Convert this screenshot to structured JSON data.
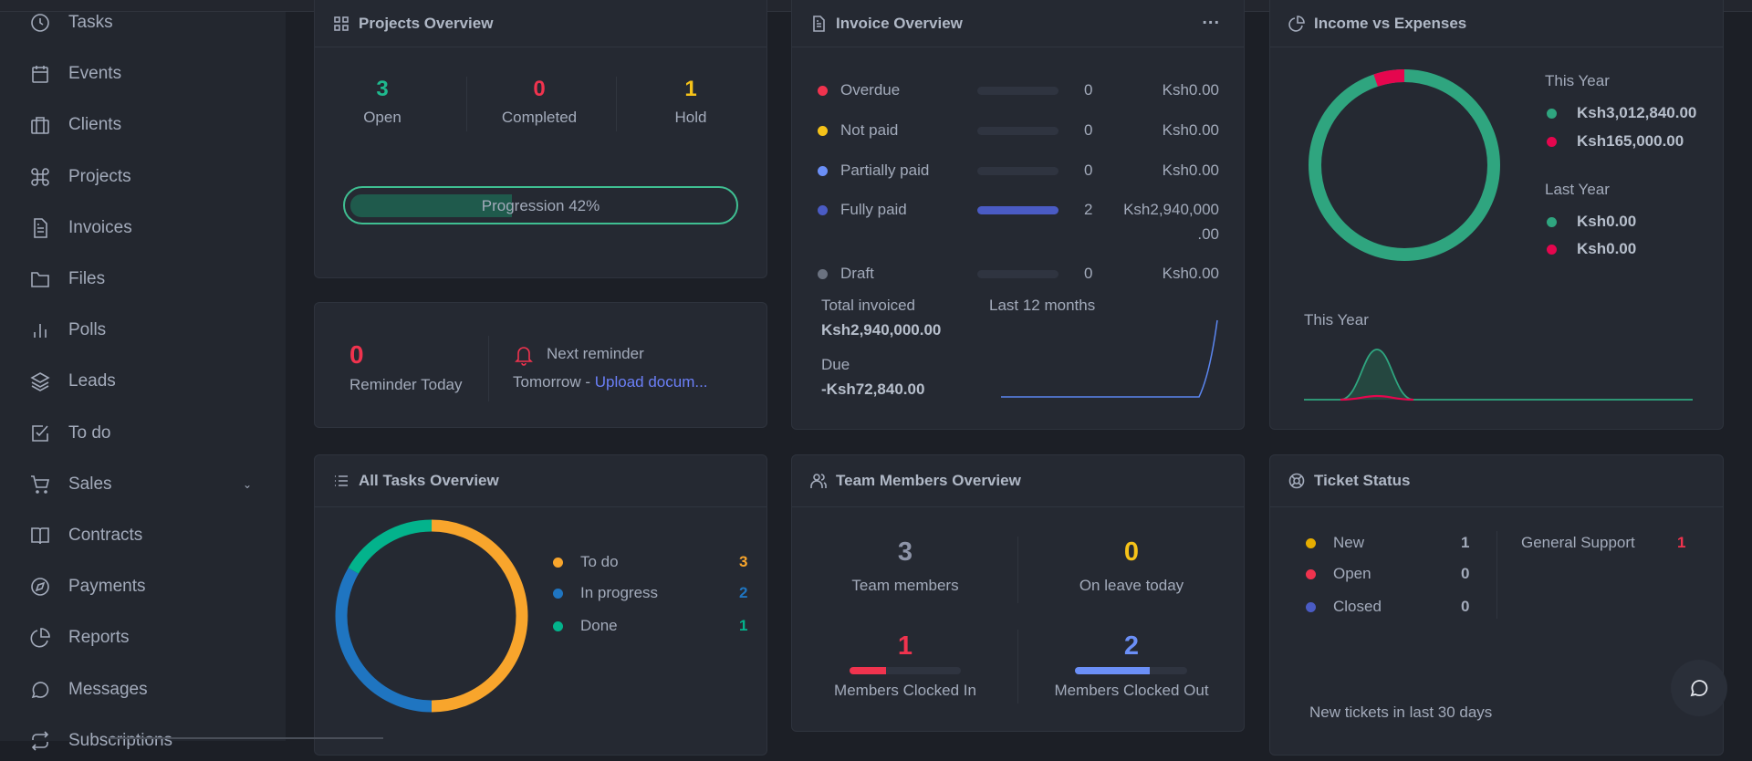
{
  "sidebar": {
    "items": [
      {
        "label": "Tasks",
        "icon": "clock-icon"
      },
      {
        "label": "Events",
        "icon": "calendar-icon"
      },
      {
        "label": "Clients",
        "icon": "briefcase-icon"
      },
      {
        "label": "Projects",
        "icon": "command-icon"
      },
      {
        "label": "Invoices",
        "icon": "file-text-icon"
      },
      {
        "label": "Files",
        "icon": "folder-icon"
      },
      {
        "label": "Polls",
        "icon": "bar-chart-icon"
      },
      {
        "label": "Leads",
        "icon": "layers-icon"
      },
      {
        "label": "To do",
        "icon": "check-square-icon"
      },
      {
        "label": "Sales",
        "icon": "shopping-cart-icon"
      },
      {
        "label": "Contracts",
        "icon": "book-open-icon"
      },
      {
        "label": "Payments",
        "icon": "compass-icon"
      },
      {
        "label": "Reports",
        "icon": "pie-chart-icon"
      },
      {
        "label": "Messages",
        "icon": "message-circle-icon"
      },
      {
        "label": "Subscriptions",
        "icon": "repeat-icon"
      }
    ]
  },
  "projects": {
    "title": "Projects Overview",
    "stats": [
      {
        "value": "3",
        "label": "Open",
        "color": "#1fb98e"
      },
      {
        "value": "0",
        "label": "Completed",
        "color": "#f0334e"
      },
      {
        "value": "1",
        "label": "Hold",
        "color": "#f5c219"
      }
    ],
    "progress_label": "Progression 42%",
    "progress": 42
  },
  "reminder": {
    "count": "0",
    "count_label": "Reminder Today",
    "next_label": "Next reminder",
    "when": "Tomorrow - ",
    "link": "Upload docum..."
  },
  "invoice": {
    "title": "Invoice Overview",
    "more": "...",
    "rows": [
      {
        "label": "Overdue",
        "count": "0",
        "amount": "Ksh0.00",
        "color": "#f0334e",
        "fill": 0
      },
      {
        "label": "Not paid",
        "count": "0",
        "amount": "Ksh0.00",
        "color": "#f5c219",
        "fill": 0
      },
      {
        "label": "Partially paid",
        "count": "0",
        "amount": "Ksh0.00",
        "color": "#6b8ff7",
        "fill": 0
      },
      {
        "label": "Fully paid",
        "count": "2",
        "amount": "Ksh2,940,000",
        "amount2": ".00",
        "color": "#4a5bc4",
        "fill": 100
      },
      {
        "label": "Draft",
        "count": "0",
        "amount": "Ksh0.00",
        "color": "#6b7280",
        "fill": 0
      }
    ],
    "total_label": "Total invoiced",
    "total_value": "Ksh2,940,000.00",
    "due_label": "Due",
    "due_value": "-Ksh72,840.00",
    "period": "Last 12 months"
  },
  "income": {
    "title": "Income vs Expenses",
    "this_year": "This Year",
    "last_year": "Last Year",
    "this_income": "Ksh3,012,840.00",
    "this_expense": "Ksh165,000.00",
    "last_income": "Ksh0.00",
    "last_expense": "Ksh0.00",
    "chart_label": "This Year",
    "income_color": "#2fa57f",
    "expense_color": "#e5064e"
  },
  "tasks": {
    "title": "All Tasks Overview",
    "items": [
      {
        "label": "To do",
        "value": "3",
        "color": "#f8a52c"
      },
      {
        "label": "In progress",
        "value": "2",
        "color": "#1f75c1"
      },
      {
        "label": "Done",
        "value": "1",
        "color": "#03b38c"
      }
    ]
  },
  "team": {
    "title": "Team Members Overview",
    "members": "3",
    "members_label": "Team members",
    "leave": "0",
    "leave_label": "On leave today",
    "clocked_in": "1",
    "clocked_in_label": "Members Clocked In",
    "clocked_out": "2",
    "clocked_out_label": "Members Clocked Out"
  },
  "tickets": {
    "title": "Ticket Status",
    "items": [
      {
        "label": "New",
        "value": "1",
        "color": "#e6ad00"
      },
      {
        "label": "Open",
        "value": "0",
        "color": "#f0334e"
      },
      {
        "label": "Closed",
        "value": "0",
        "color": "#4a5bc4"
      }
    ],
    "group_label": "General Support",
    "group_value": "1",
    "footer": "New tickets in last 30 days"
  }
}
